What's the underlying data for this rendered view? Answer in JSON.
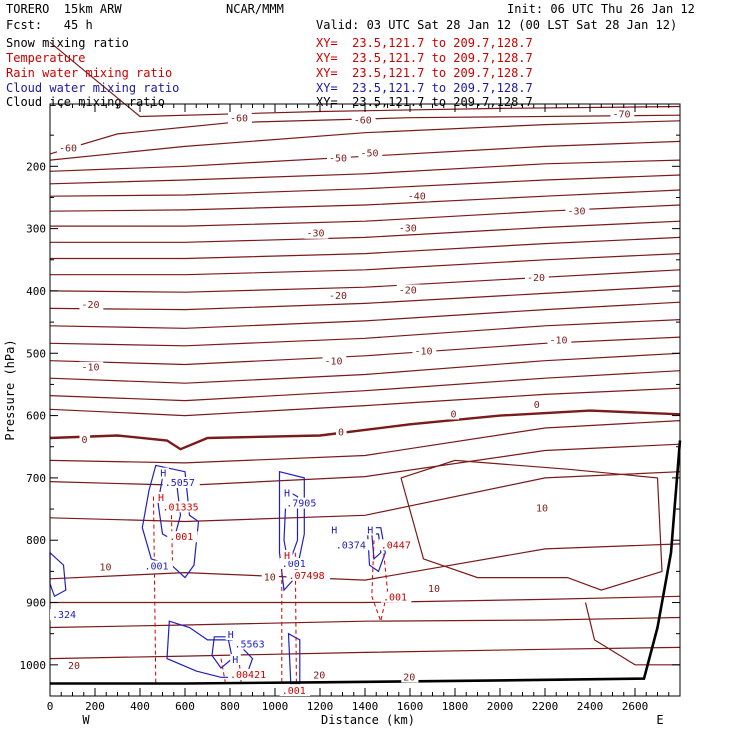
{
  "header": {
    "model": "TORERO  15km ARW",
    "org": "NCAR/MMM",
    "init": "Init: 06 UTC Thu 26 Jan 12",
    "fcst": "Fcst:   45 h",
    "valid": "Valid: 03 UTC Sat 28 Jan 12 (00 LST Sat 28 Jan 12)"
  },
  "fields": [
    {
      "name": "Snow mixing ratio",
      "xy": "",
      "color": "#000000"
    },
    {
      "name": "Temperature",
      "xy": "XY=  23.5,121.7 to 209.7,128.7",
      "color": "#cc0000"
    },
    {
      "name": "Rain water mixing ratio",
      "xy": "XY=  23.5,121.7 to 209.7,128.7",
      "color": "#cc0000"
    },
    {
      "name": "Cloud water mixing ratio",
      "xy": "XY=  23.5,121.7 to 209.7,128.7",
      "color": "#1a1aa0"
    },
    {
      "name": "Cloud ice mixing ratio",
      "xy": "XY=  23.5,121.7 to 209.7,128.7",
      "color": "#000000"
    }
  ],
  "colors": {
    "temperature": "#7a1a1a",
    "rain": "#cc0000",
    "cloud_water": "#2020c0",
    "terrain": "#000000"
  },
  "chart_data": {
    "type": "line",
    "xlabel": "Distance (km)",
    "ylabel": "Pressure (hPa)",
    "xlim": [
      0,
      2800
    ],
    "ylim": [
      1050,
      100
    ],
    "x_ticks": [
      0,
      200,
      400,
      600,
      800,
      1000,
      1200,
      1400,
      1600,
      1800,
      2000,
      2200,
      2400,
      2600
    ],
    "y_ticks": [
      200,
      300,
      400,
      500,
      600,
      700,
      800,
      900,
      1000
    ],
    "left_end": "W",
    "right_end": "E",
    "temperature_labels": [
      {
        "text": "-60",
        "x": 40,
        "p": 176
      },
      {
        "text": "-60",
        "x": 800,
        "p": 128
      },
      {
        "text": "-60",
        "x": 1350,
        "p": 131
      },
      {
        "text": "-70",
        "x": 2500,
        "p": 122
      },
      {
        "text": "-50",
        "x": 1240,
        "p": 192
      },
      {
        "text": "-50",
        "x": 1380,
        "p": 184
      },
      {
        "text": "-40",
        "x": 1590,
        "p": 253
      },
      {
        "text": "-30",
        "x": 1140,
        "p": 313
      },
      {
        "text": "-30",
        "x": 1550,
        "p": 305
      },
      {
        "text": "-30",
        "x": 2300,
        "p": 277
      },
      {
        "text": "-20",
        "x": 140,
        "p": 427
      },
      {
        "text": "-20",
        "x": 1240,
        "p": 413
      },
      {
        "text": "-20",
        "x": 1550,
        "p": 404
      },
      {
        "text": "-20",
        "x": 2120,
        "p": 384
      },
      {
        "text": "-10",
        "x": 140,
        "p": 528
      },
      {
        "text": "-10",
        "x": 1220,
        "p": 518
      },
      {
        "text": "-10",
        "x": 1620,
        "p": 502
      },
      {
        "text": "-10",
        "x": 2220,
        "p": 484
      },
      {
        "text": "0",
        "x": 140,
        "p": 644
      },
      {
        "text": "0",
        "x": 1280,
        "p": 632
      },
      {
        "text": "0",
        "x": 1780,
        "p": 603
      },
      {
        "text": "0",
        "x": 2150,
        "p": 588
      },
      {
        "text": "10",
        "x": 220,
        "p": 849
      },
      {
        "text": "10",
        "x": 950,
        "p": 865
      },
      {
        "text": "10",
        "x": 1680,
        "p": 883
      },
      {
        "text": "10",
        "x": 2160,
        "p": 754
      },
      {
        "text": "20",
        "x": 80,
        "p": 1007
      },
      {
        "text": "20",
        "x": 1170,
        "p": 1022
      },
      {
        "text": "20",
        "x": 1570,
        "p": 1025
      }
    ],
    "cloud_water_labels": [
      {
        "text": "H",
        "x": 490,
        "p": 698
      },
      {
        "text": ".5057",
        "x": 510,
        "p": 713
      },
      {
        "text": ".001",
        "x": 420,
        "p": 847
      },
      {
        "text": ".7905",
        "x": 1050,
        "p": 746
      },
      {
        "text": "H",
        "x": 1040,
        "p": 730
      },
      {
        "text": ".001",
        "x": 1030,
        "p": 843
      },
      {
        "text": "H",
        "x": 1250,
        "p": 789
      },
      {
        "text": ".0374",
        "x": 1270,
        "p": 813
      },
      {
        "text": "H",
        "x": 1410,
        "p": 789
      },
      {
        "text": "H",
        "x": 790,
        "p": 957
      },
      {
        "text": ".5563",
        "x": 820,
        "p": 972
      },
      {
        "text": ".324",
        "x": 0,
        "p": 925
      },
      {
        "text": "H",
        "x": 810,
        "p": 997
      }
    ],
    "rain_labels": [
      {
        "text": "H",
        "x": 480,
        "p": 737
      },
      {
        "text": ".01335",
        "x": 500,
        "p": 752
      },
      {
        "text": ".001",
        "x": 530,
        "p": 800
      },
      {
        "text": "H",
        "x": 1040,
        "p": 830
      },
      {
        "text": ".07498",
        "x": 1060,
        "p": 862
      },
      {
        "text": ".0447",
        "x": 1470,
        "p": 813
      },
      {
        "text": ".001",
        "x": 1480,
        "p": 897
      },
      {
        "text": ".00421",
        "x": 800,
        "p": 1021
      },
      {
        "text": ".001",
        "x": 1030,
        "p": 1068
      }
    ]
  }
}
